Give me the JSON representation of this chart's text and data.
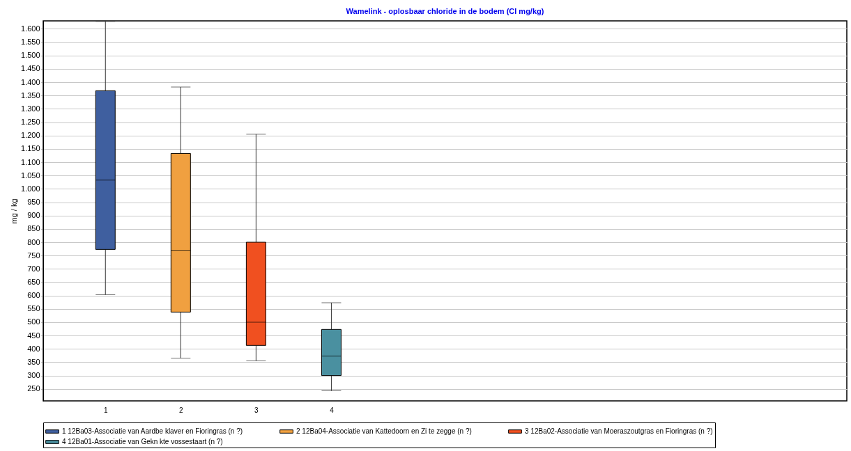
{
  "chart_data": {
    "type": "box",
    "title": "Wamelink - oplosbaar chloride in de bodem (Cl mg/kg)",
    "ylabel": "mg / kg",
    "categories": [
      "1",
      "2",
      "3",
      "4"
    ],
    "series": [
      {
        "name": "1 12Ba03-Associatie van Aardbe klaver en Fioringras (n ?)",
        "color": "#3f5f9f",
        "boxes": [
          {
            "low": 603,
            "q1": 773,
            "median": 1033,
            "q3": 1368,
            "high": 1628
          },
          null,
          null,
          null
        ]
      },
      {
        "name": "2 12Ba04-Associatie van Kattedoorn en Zi te zegge (n ?)",
        "color": "#f0a040",
        "boxes": [
          null,
          {
            "low": 365,
            "q1": 538,
            "median": 770,
            "q3": 1133,
            "high": 1382
          },
          null,
          null
        ]
      },
      {
        "name": "3 12Ba02-Associatie van Moeraszoutgras en Fioringras (n ?)",
        "color": "#f05020",
        "boxes": [
          null,
          null,
          {
            "low": 355,
            "q1": 413,
            "median": 500,
            "q3": 800,
            "high": 1205
          },
          null
        ]
      },
      {
        "name": "4 12Ba01-Associatie van Gekn kte vossestaart (n ?)",
        "color": "#4a90a0",
        "boxes": [
          null,
          null,
          null,
          {
            "low": 243,
            "q1": 300,
            "median": 373,
            "q3": 473,
            "high": 573
          }
        ]
      }
    ],
    "ylim": [
      205,
      1630
    ],
    "yticks": [
      250,
      300,
      350,
      400,
      450,
      500,
      550,
      600,
      650,
      700,
      750,
      800,
      850,
      900,
      950,
      {
        "value": 1000,
        "label": "1.000"
      },
      {
        "value": 1050,
        "label": "1.050"
      },
      {
        "value": 1100,
        "label": "1.100"
      },
      {
        "value": 1150,
        "label": "1.150"
      },
      {
        "value": 1200,
        "label": "1.200"
      },
      {
        "value": 1250,
        "label": "1.250"
      },
      {
        "value": 1300,
        "label": "1.300"
      },
      {
        "value": 1350,
        "label": "1.350"
      },
      {
        "value": 1400,
        "label": "1.400"
      },
      {
        "value": 1450,
        "label": "1.450"
      },
      {
        "value": 1500,
        "label": "1.500"
      },
      {
        "value": 1550,
        "label": "1.550"
      },
      {
        "value": 1600,
        "label": "1.600"
      }
    ],
    "grid": "y",
    "legend": "bottom"
  }
}
